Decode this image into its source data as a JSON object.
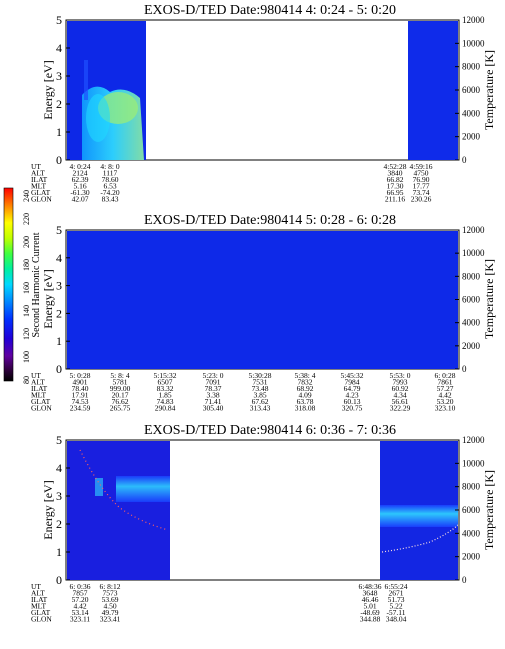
{
  "figure": {
    "colorbar": {
      "label": "Second Harmonic Current",
      "ticks": [
        "240",
        "220",
        "200",
        "180",
        "160",
        "140",
        "120",
        "100",
        "80"
      ]
    }
  },
  "chart_data": [
    {
      "type": "heatmap",
      "title": "EXOS-D/TED   Date:980414  4: 0:24 - 5: 0:20",
      "ylabel": "Energy [eV]",
      "y2label": "Temperature [K]",
      "ylim": [
        0,
        5
      ],
      "y2lim": [
        0,
        12000
      ],
      "yticks": [
        "0",
        "1",
        "2",
        "3",
        "4",
        "5"
      ],
      "y2ticks": [
        "0",
        "2000",
        "4000",
        "6000",
        "8000",
        "10000",
        "12000"
      ],
      "grid": false,
      "data_segments": [
        {
          "start": "4:0:24",
          "end": "4:8:0"
        },
        {
          "start": "4:52:28",
          "end": "5:0:20"
        }
      ],
      "coordinate_table": {
        "rows": [
          "UT",
          "ALT",
          "ILAT",
          "MLT",
          "GLAT",
          "GLON"
        ],
        "columns": [
          {
            "UT": "4: 0:24",
            "ALT": "2124",
            "ILAT": "62.39",
            "MLT": "5.16",
            "GLAT": "-61.30",
            "GLON": "42.07"
          },
          {
            "UT": "4: 8: 0",
            "ALT": "1117",
            "ILAT": "78.60",
            "MLT": "6.53",
            "GLAT": "-74.20",
            "GLON": "83.43"
          },
          {
            "UT": "4:52:28",
            "ALT": "3840",
            "ILAT": "66.82",
            "MLT": "17.30",
            "GLAT": "66.95",
            "GLON": "211.16"
          },
          {
            "UT": "4:59:16",
            "ALT": "4750",
            "ILAT": "76.90",
            "MLT": "17.77",
            "GLAT": "73.74",
            "GLON": "230.26"
          }
        ]
      }
    },
    {
      "type": "heatmap",
      "title": "EXOS-D/TED   Date:980414  5: 0:28 - 6: 0:28",
      "ylabel": "Energy [eV]",
      "y2label": "Temperature [K]",
      "ylim": [
        0,
        5
      ],
      "y2lim": [
        0,
        12000
      ],
      "yticks": [
        "0",
        "1",
        "2",
        "3",
        "4",
        "5"
      ],
      "y2ticks": [
        "0",
        "2000",
        "4000",
        "6000",
        "8000",
        "10000",
        "12000"
      ],
      "grid": false,
      "data_segments": [
        {
          "start": "5:0:28",
          "end": "6:0:28"
        }
      ],
      "coordinate_table": {
        "rows": [
          "UT",
          "ALT",
          "ILAT",
          "MLT",
          "GLAT",
          "GLON"
        ],
        "columns": [
          {
            "UT": "5: 0:28",
            "ALT": "4901",
            "ILAT": "78.40",
            "MLT": "17.91",
            "GLAT": "74.53",
            "GLON": "234.59"
          },
          {
            "UT": "5: 8: 4",
            "ALT": "5781",
            "ILAT": "999.00",
            "MLT": "20.17",
            "GLAT": "76.62",
            "GLON": "265.75"
          },
          {
            "UT": "5:15:32",
            "ALT": "6507",
            "ILAT": "83.32",
            "MLT": "1.85",
            "GLAT": "74.83",
            "GLON": "290.84"
          },
          {
            "UT": "5:23: 0",
            "ALT": "7091",
            "ILAT": "78.37",
            "MLT": "3.38",
            "GLAT": "71.41",
            "GLON": "305.40"
          },
          {
            "UT": "5:30:28",
            "ALT": "7531",
            "ILAT": "73.48",
            "MLT": "3.85",
            "GLAT": "67.62",
            "GLON": "313.43"
          },
          {
            "UT": "5:38: 4",
            "ALT": "7832",
            "ILAT": "68.92",
            "MLT": "4.09",
            "GLAT": "63.78",
            "GLON": "318.08"
          },
          {
            "UT": "5:45:32",
            "ALT": "7984",
            "ILAT": "64.79",
            "MLT": "4.23",
            "GLAT": "60.13",
            "GLON": "320.75"
          },
          {
            "UT": "5:53: 0",
            "ALT": "7993",
            "ILAT": "60.92",
            "MLT": "4.34",
            "GLAT": "56.61",
            "GLON": "322.29"
          },
          {
            "UT": "6: 0:28",
            "ALT": "7861",
            "ILAT": "57.27",
            "MLT": "4.42",
            "GLAT": "53.20",
            "GLON": "323.10"
          }
        ]
      }
    },
    {
      "type": "heatmap",
      "title": "EXOS-D/TED   Date:980414  6: 0:36 - 7: 0:36",
      "ylabel": "Energy [eV]",
      "y2label": "Temperature [K]",
      "ylim": [
        0,
        5
      ],
      "y2lim": [
        0,
        12000
      ],
      "yticks": [
        "0",
        "1",
        "2",
        "3",
        "4",
        "5"
      ],
      "y2ticks": [
        "0",
        "2000",
        "4000",
        "6000",
        "8000",
        "10000",
        "12000"
      ],
      "grid": false,
      "data_segments": [
        {
          "start": "6:0:36",
          "end": "6:8:12"
        },
        {
          "start": "6:48:36",
          "end": "7:0:36"
        }
      ],
      "coordinate_table": {
        "rows": [
          "UT",
          "ALT",
          "ILAT",
          "MLT",
          "GLAT",
          "GLON"
        ],
        "columns": [
          {
            "UT": "6: 0:36",
            "ALT": "7857",
            "ILAT": "57.20",
            "MLT": "4.42",
            "GLAT": "53.14",
            "GLON": "323.11"
          },
          {
            "UT": "6: 8:12",
            "ALT": "7573",
            "ILAT": "53.69",
            "MLT": "4.50",
            "GLAT": "49.79",
            "GLON": "323.41"
          },
          {
            "UT": "6:48:36",
            "ALT": "3648",
            "ILAT": "46.46",
            "MLT": "5.01",
            "GLAT": "-48.69",
            "GLON": "344.88"
          },
          {
            "UT": "6:55:24",
            "ALT": "2671",
            "ILAT": "51.73",
            "MLT": "5.22",
            "GLAT": "-57.11",
            "GLON": "348.04"
          }
        ]
      }
    }
  ]
}
